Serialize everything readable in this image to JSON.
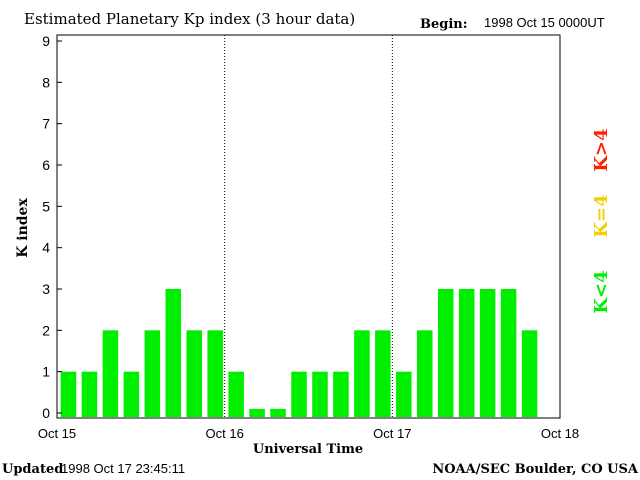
{
  "header": {
    "title": "Estimated Planetary Kp index (3 hour data)",
    "begin_label": "Begin:",
    "begin_value": "1998 Oct 15 0000UT"
  },
  "footer": {
    "updated_label": "Updated",
    "updated_value": "1998 Oct 17 23:45:11",
    "credit": "NOAA/SEC Boulder, CO USA"
  },
  "legend": {
    "items": [
      {
        "label": "K<4",
        "color": "#00ee00"
      },
      {
        "label": "K=4",
        "color": "#f0d000"
      },
      {
        "label": "K>4",
        "color": "#ff2000"
      }
    ]
  },
  "chart_data": {
    "type": "bar",
    "title": "Estimated Planetary Kp index (3 hour data)",
    "xlabel": "Universal Time",
    "ylabel": "K index",
    "ylim": [
      0,
      9
    ],
    "yticks": [
      "0",
      "1",
      "2",
      "3",
      "4",
      "5",
      "6",
      "7",
      "8",
      "9"
    ],
    "xticks": [
      "Oct 15",
      "Oct 16",
      "Oct 17",
      "Oct 18"
    ],
    "interval_hours": 3,
    "values": [
      1,
      1,
      2,
      1,
      2,
      3,
      2,
      2,
      1,
      0.1,
      0.1,
      1,
      1,
      1,
      2,
      2,
      1,
      2,
      3,
      3,
      3,
      3,
      2
    ],
    "colors": {
      "low": "#00ee00",
      "mid": "#f0d000",
      "high": "#ff2000"
    },
    "day_separators": "dotted"
  }
}
